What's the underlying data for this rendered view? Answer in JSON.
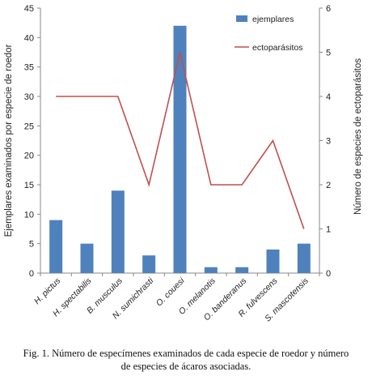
{
  "chart_data": {
    "type": "bar+line",
    "categories": [
      "H. pictus",
      "H. spectabilis",
      "B. musculus",
      "N. sumichrasti",
      "O. couesi",
      "O. melanotis",
      "O. banderanus",
      "R. fulvescens",
      "S. mascotensis"
    ],
    "series": [
      {
        "name": "ejemplares",
        "type": "bar",
        "axis": "left",
        "values": [
          9,
          5,
          14,
          3,
          42,
          1,
          1,
          4,
          5
        ],
        "color": "#4f81bd"
      },
      {
        "name": "ectoparásitos",
        "type": "line",
        "axis": "right",
        "values": [
          4,
          4,
          4,
          2,
          5,
          2,
          2,
          3,
          1
        ],
        "color": "#c0504d"
      }
    ],
    "ylabel": "Ejemplares examinados por especie de roedor",
    "y2label": "Número de especies de  ectoparásitos",
    "ylim": [
      0,
      45
    ],
    "y2lim": [
      0,
      6
    ],
    "yticks": [
      0,
      5,
      10,
      15,
      20,
      25,
      30,
      35,
      40,
      45
    ],
    "y2ticks": [
      0,
      1,
      2,
      3,
      4,
      5,
      6
    ],
    "legend": "top-right",
    "grid": false
  },
  "caption_line1": "Fig. 1. Número de especímenes examinados de cada especie de roedor y número",
  "caption_line2": "de especies de ácaros asociadas."
}
